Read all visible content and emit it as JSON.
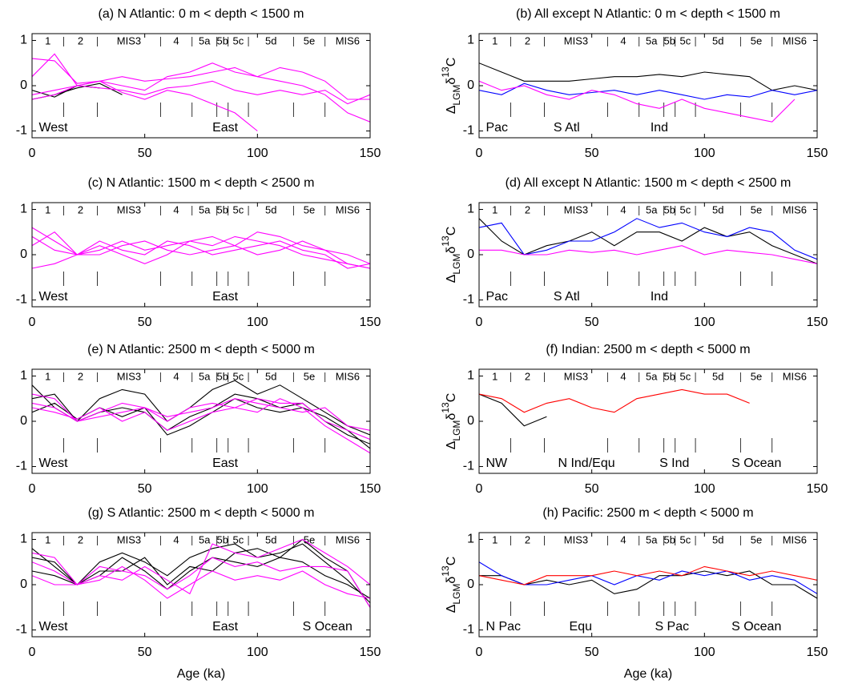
{
  "stages": {
    "labels": [
      "1",
      "2",
      "MIS3",
      "4",
      "5a",
      "5b",
      "5c",
      "5d",
      "5e",
      "MIS6"
    ],
    "boundaries": [
      14,
      29,
      57,
      71,
      82,
      87,
      96,
      116,
      130
    ]
  },
  "chart_data": [
    {
      "type": "line",
      "title": "(a) N Atlantic: 0 m < depth < 1500 m",
      "x": [
        0,
        10,
        20,
        30,
        40,
        50,
        60,
        70,
        80,
        90,
        100,
        110,
        120,
        130,
        140,
        150
      ],
      "xlim": [
        0,
        150
      ],
      "xticks": [
        0,
        50,
        100,
        150
      ],
      "ylim": [
        -1.15,
        1.15
      ],
      "yticks": [
        -1,
        0,
        1
      ],
      "series": [
        {
          "name": "West",
          "color": "#000000",
          "lines": [
            [
              -0.1,
              -0.25,
              0.0,
              -0.05,
              null,
              null,
              null,
              null,
              null,
              null,
              null,
              null,
              null,
              null,
              null,
              null
            ],
            [
              -0.3,
              -0.2,
              -0.05,
              0.05,
              -0.2,
              null,
              null,
              null,
              null,
              null,
              null,
              null,
              null,
              null,
              null,
              null
            ]
          ]
        },
        {
          "name": "East",
          "color": "#ff00ff",
          "lines": [
            [
              0.6,
              0.55,
              0.05,
              0.1,
              0.0,
              -0.1,
              0.2,
              0.3,
              0.5,
              0.3,
              0.2,
              0.4,
              0.3,
              0.1,
              -0.3,
              -0.3
            ],
            [
              -0.2,
              -0.1,
              0.0,
              -0.05,
              -0.1,
              -0.2,
              -0.05,
              0.0,
              0.1,
              -0.1,
              -0.2,
              -0.1,
              -0.2,
              -0.1,
              -0.4,
              -0.2
            ],
            [
              0.2,
              0.7,
              0.0,
              0.1,
              -0.15,
              -0.3,
              -0.1,
              -0.2,
              -0.4,
              -0.6,
              -1.0,
              null,
              null,
              null,
              null,
              null
            ],
            [
              -0.3,
              -0.2,
              0.0,
              0.1,
              0.2,
              0.1,
              0.15,
              0.2,
              0.3,
              0.4,
              0.2,
              0.1,
              0.0,
              -0.2,
              -0.6,
              -0.8
            ]
          ]
        }
      ]
    },
    {
      "type": "line",
      "title": "(b) All except N Atlantic: 0 m < depth < 1500 m",
      "ylabel": [
        "Δ",
        "LGM",
        "δ",
        "13",
        "C"
      ],
      "x": [
        0,
        10,
        20,
        30,
        40,
        50,
        60,
        70,
        80,
        90,
        100,
        110,
        120,
        130,
        140,
        150
      ],
      "xlim": [
        0,
        150
      ],
      "xticks": [
        0,
        50,
        100,
        150
      ],
      "ylim": [
        -1.15,
        1.15
      ],
      "yticks": [
        -1,
        0,
        1
      ],
      "series": [
        {
          "name": "Pac",
          "color": "#000000",
          "lines": [
            [
              0.5,
              0.3,
              0.1,
              0.1,
              0.1,
              0.15,
              0.2,
              0.2,
              0.25,
              0.2,
              0.3,
              0.25,
              0.2,
              -0.1,
              0.0,
              -0.1
            ]
          ]
        },
        {
          "name": "S Atl",
          "color": "#0000ff",
          "lines": [
            [
              -0.1,
              -0.2,
              0.05,
              -0.1,
              -0.2,
              -0.15,
              -0.1,
              -0.2,
              -0.1,
              -0.2,
              -0.3,
              -0.2,
              -0.25,
              -0.1,
              -0.2,
              -0.1
            ]
          ]
        },
        {
          "name": "Ind",
          "color": "#ff00ff",
          "lines": [
            [
              0.1,
              -0.1,
              0.0,
              -0.2,
              -0.3,
              -0.1,
              -0.2,
              -0.4,
              -0.5,
              -0.3,
              -0.5,
              -0.6,
              -0.7,
              -0.8,
              -0.3,
              null
            ]
          ]
        }
      ]
    },
    {
      "type": "line",
      "title": "(c) N Atlantic: 1500 m < depth < 2500 m",
      "x": [
        0,
        10,
        20,
        30,
        40,
        50,
        60,
        70,
        80,
        90,
        100,
        110,
        120,
        130,
        140,
        150
      ],
      "xlim": [
        0,
        150
      ],
      "xticks": [
        0,
        50,
        100,
        150
      ],
      "ylim": [
        -1.15,
        1.15
      ],
      "yticks": [
        -1,
        0,
        1
      ],
      "series": [
        {
          "name": "West",
          "color": "#000000",
          "lines": []
        },
        {
          "name": "East",
          "color": "#ff00ff",
          "lines": [
            [
              0.6,
              0.3,
              0.0,
              0.1,
              0.3,
              0.1,
              0.2,
              0.3,
              0.2,
              0.4,
              0.3,
              0.2,
              0.0,
              -0.1,
              -0.2,
              -0.3
            ],
            [
              0.4,
              0.1,
              0.0,
              0.2,
              0.0,
              -0.2,
              0.0,
              0.3,
              0.4,
              0.2,
              0.5,
              0.4,
              0.2,
              0.1,
              0.0,
              -0.2
            ],
            [
              -0.3,
              -0.2,
              0.0,
              0.0,
              0.2,
              0.3,
              0.1,
              0.0,
              0.1,
              0.2,
              0.0,
              0.1,
              0.3,
              0.1,
              -0.2,
              -0.3
            ],
            [
              0.2,
              0.5,
              0.0,
              0.3,
              0.1,
              0.0,
              0.3,
              0.2,
              0.0,
              0.1,
              0.2,
              0.3,
              0.1,
              0.0,
              -0.3,
              -0.2
            ]
          ]
        }
      ]
    },
    {
      "type": "line",
      "title": "(d) All except N Atlantic: 1500 m < depth < 2500 m",
      "ylabel": [
        "Δ",
        "LGM",
        "δ",
        "13",
        "C"
      ],
      "x": [
        0,
        10,
        20,
        30,
        40,
        50,
        60,
        70,
        80,
        90,
        100,
        110,
        120,
        130,
        140,
        150
      ],
      "xlim": [
        0,
        150
      ],
      "xticks": [
        0,
        50,
        100,
        150
      ],
      "ylim": [
        -1.15,
        1.15
      ],
      "yticks": [
        -1,
        0,
        1
      ],
      "series": [
        {
          "name": "Pac",
          "color": "#000000",
          "lines": [
            [
              0.8,
              0.3,
              0.0,
              0.2,
              0.3,
              0.5,
              0.2,
              0.5,
              0.5,
              0.3,
              0.6,
              0.4,
              0.5,
              0.2,
              0.0,
              -0.2
            ]
          ]
        },
        {
          "name": "S Atl",
          "color": "#0000ff",
          "lines": [
            [
              0.6,
              0.7,
              0.0,
              0.1,
              0.3,
              0.3,
              0.5,
              0.8,
              0.6,
              0.7,
              0.5,
              0.4,
              0.6,
              0.5,
              0.1,
              -0.1
            ]
          ]
        },
        {
          "name": "Ind",
          "color": "#ff00ff",
          "lines": [
            [
              0.1,
              0.1,
              0.0,
              0.0,
              0.1,
              0.05,
              0.1,
              0.0,
              0.1,
              0.2,
              0.0,
              0.1,
              0.05,
              0.0,
              -0.1,
              -0.2
            ]
          ]
        }
      ]
    },
    {
      "type": "line",
      "title": "(e) N Atlantic: 2500 m < depth < 5000 m",
      "x": [
        0,
        10,
        20,
        30,
        40,
        50,
        60,
        70,
        80,
        90,
        100,
        110,
        120,
        130,
        140,
        150
      ],
      "xlim": [
        0,
        150
      ],
      "xticks": [
        0,
        50,
        100,
        150
      ],
      "ylim": [
        -1.15,
        1.15
      ],
      "yticks": [
        -1,
        0,
        1
      ],
      "series": [
        {
          "name": "West",
          "color": "#000000",
          "lines": [
            [
              0.5,
              0.6,
              0.0,
              0.2,
              0.3,
              0.2,
              -0.2,
              0.1,
              0.3,
              0.6,
              0.5,
              0.3,
              0.4,
              0.0,
              -0.3,
              -0.5
            ],
            [
              0.8,
              0.3,
              0.0,
              0.5,
              0.7,
              0.6,
              0.0,
              0.3,
              0.7,
              0.9,
              0.6,
              0.8,
              0.5,
              0.2,
              -0.1,
              -0.3
            ],
            [
              0.2,
              0.4,
              0.05,
              0.3,
              0.1,
              0.3,
              -0.3,
              -0.1,
              0.2,
              0.5,
              0.3,
              0.2,
              0.3,
              0.1,
              -0.2,
              -0.6
            ]
          ]
        },
        {
          "name": "East",
          "color": "#ff00ff",
          "lines": [
            [
              0.4,
              0.3,
              0.0,
              0.2,
              0.4,
              0.3,
              0.0,
              0.3,
              0.4,
              0.3,
              0.5,
              0.4,
              0.4,
              0.0,
              -0.2,
              -0.4
            ],
            [
              0.6,
              0.5,
              0.0,
              0.1,
              0.2,
              0.3,
              0.1,
              0.2,
              0.3,
              0.5,
              0.4,
              0.3,
              0.2,
              0.3,
              -0.1,
              -0.2
            ],
            [
              0.3,
              0.2,
              0.05,
              0.3,
              0.0,
              0.2,
              -0.2,
              0.0,
              0.2,
              0.3,
              0.2,
              0.5,
              0.3,
              -0.1,
              -0.4,
              -0.7
            ]
          ]
        }
      ]
    },
    {
      "type": "line",
      "title": "(f) Indian: 2500 m < depth < 5000 m",
      "ylabel": [
        "Δ",
        "LGM",
        "δ",
        "13",
        "C"
      ],
      "x": [
        0,
        10,
        20,
        30,
        40,
        50,
        60,
        70,
        80,
        90,
        100,
        110,
        120,
        130,
        140,
        150
      ],
      "xlim": [
        0,
        150
      ],
      "xticks": [
        0,
        50,
        100,
        150
      ],
      "ylim": [
        -1.15,
        1.15
      ],
      "yticks": [
        -1,
        0,
        1
      ],
      "series": [
        {
          "name": "NW",
          "color": "#000000",
          "lines": [
            [
              0.6,
              0.4,
              -0.1,
              0.1,
              null,
              null,
              null,
              null,
              null,
              null,
              null,
              null,
              null,
              null,
              null,
              null
            ]
          ]
        },
        {
          "name": "N Ind/Equ",
          "color": "#0000ff",
          "lines": []
        },
        {
          "name": "S Ind",
          "color": "#ff00ff",
          "lines": []
        },
        {
          "name": "S Ocean",
          "color": "#ff0000",
          "lines": [
            [
              0.6,
              0.5,
              0.2,
              0.4,
              0.5,
              0.3,
              0.2,
              0.5,
              0.6,
              0.7,
              0.6,
              0.6,
              0.4,
              null,
              null,
              null
            ]
          ]
        }
      ]
    },
    {
      "type": "line",
      "title": "(g) S Atlantic: 2500 m < depth < 5000 m",
      "xlabel": "Age (ka)",
      "x": [
        0,
        10,
        20,
        30,
        40,
        50,
        60,
        70,
        80,
        90,
        100,
        110,
        120,
        130,
        140,
        150
      ],
      "xlim": [
        0,
        150
      ],
      "xticks": [
        0,
        50,
        100,
        150
      ],
      "ylim": [
        -1.15,
        1.15
      ],
      "yticks": [
        -1,
        0,
        1
      ],
      "series": [
        {
          "name": "West",
          "color": "#000000",
          "lines": [
            [
              0.8,
              0.4,
              0.0,
              0.5,
              0.7,
              0.5,
              0.2,
              0.6,
              0.8,
              0.9,
              0.6,
              0.7,
              0.9,
              0.5,
              0.1,
              -0.4
            ],
            [
              0.3,
              0.2,
              0.0,
              0.2,
              0.6,
              0.3,
              -0.1,
              0.3,
              0.6,
              0.5,
              0.4,
              0.6,
              0.5,
              0.2,
              0.0,
              -0.3
            ],
            [
              0.6,
              0.5,
              0.0,
              0.3,
              0.3,
              0.6,
              0.0,
              0.4,
              0.3,
              0.7,
              0.8,
              0.6,
              1.0,
              0.6,
              0.3,
              -0.5
            ]
          ]
        },
        {
          "name": "East",
          "color": "#ff00ff",
          "lines": [
            [
              0.5,
              0.3,
              0.0,
              0.4,
              0.3,
              0.2,
              -0.1,
              0.2,
              0.6,
              0.4,
              0.5,
              0.3,
              0.4,
              0.4,
              0.3,
              -0.5
            ],
            [
              0.2,
              0.0,
              0.0,
              0.1,
              0.4,
              0.1,
              -0.3,
              0.0,
              0.3,
              0.1,
              0.2,
              0.1,
              0.3,
              0.0,
              -0.2,
              -0.3
            ],
            [
              0.7,
              0.6,
              0.0,
              0.2,
              0.1,
              0.4,
              0.1,
              -0.2,
              0.9,
              0.7,
              0.6,
              0.8,
              1.0,
              0.7,
              0.4,
              0.0
            ]
          ]
        },
        {
          "name": "S Ocean",
          "color": "#ff0000",
          "lines": []
        }
      ]
    },
    {
      "type": "line",
      "title": "(h) Pacific: 2500 m < depth < 5000 m",
      "xlabel": "Age (ka)",
      "ylabel": [
        "Δ",
        "LGM",
        "δ",
        "13",
        "C"
      ],
      "x": [
        0,
        10,
        20,
        30,
        40,
        50,
        60,
        70,
        80,
        90,
        100,
        110,
        120,
        130,
        140,
        150
      ],
      "xlim": [
        0,
        150
      ],
      "xticks": [
        0,
        50,
        100,
        150
      ],
      "ylim": [
        -1.15,
        1.15
      ],
      "yticks": [
        -1,
        0,
        1
      ],
      "series": [
        {
          "name": "N Pac",
          "color": "#000000",
          "lines": [
            [
              0.2,
              0.2,
              0.0,
              0.1,
              0.0,
              0.1,
              -0.2,
              -0.1,
              0.2,
              0.2,
              0.3,
              0.2,
              0.3,
              0.0,
              0.0,
              -0.3
            ]
          ]
        },
        {
          "name": "Equ",
          "color": "#0000ff",
          "lines": [
            [
              0.5,
              0.2,
              0.0,
              0.0,
              0.1,
              0.2,
              0.0,
              0.2,
              0.1,
              0.3,
              0.2,
              0.3,
              0.1,
              0.2,
              0.1,
              -0.2
            ]
          ]
        },
        {
          "name": "S Pac",
          "color": "#ff00ff",
          "lines": []
        },
        {
          "name": "S Ocean",
          "color": "#ff0000",
          "lines": [
            [
              0.2,
              0.1,
              0.0,
              0.2,
              0.2,
              0.2,
              0.3,
              0.2,
              0.3,
              0.2,
              0.4,
              0.3,
              0.2,
              0.3,
              0.2,
              0.1
            ]
          ]
        }
      ]
    }
  ]
}
